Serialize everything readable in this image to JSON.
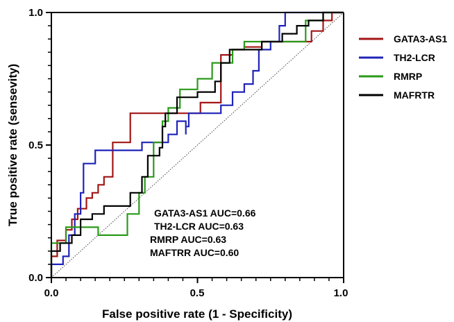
{
  "chart_data": {
    "type": "line",
    "title": "",
    "xlabel": "False positive rate (1 - Specificity)",
    "ylabel": "True positive rate (sensevity)",
    "xlim": [
      0,
      1
    ],
    "ylim": [
      0,
      1
    ],
    "x_ticks": [
      "0.0",
      "0.5",
      "1.0"
    ],
    "y_ticks": [
      "0.0",
      "0.5",
      "1.0"
    ],
    "grid": false,
    "legend_position": "right",
    "reference_line": {
      "style": "dotted",
      "from": [
        0,
        0
      ],
      "to": [
        1,
        1
      ],
      "color": "#444444"
    },
    "series": [
      {
        "name": "GATA3-AS1",
        "color": "#a31515",
        "points": [
          [
            0,
            0
          ],
          [
            0,
            0.08
          ],
          [
            0.02,
            0.08
          ],
          [
            0.02,
            0.14
          ],
          [
            0.05,
            0.14
          ],
          [
            0.05,
            0.18
          ],
          [
            0.07,
            0.18
          ],
          [
            0.07,
            0.22
          ],
          [
            0.09,
            0.22
          ],
          [
            0.09,
            0.26
          ],
          [
            0.12,
            0.26
          ],
          [
            0.12,
            0.3
          ],
          [
            0.14,
            0.3
          ],
          [
            0.14,
            0.32
          ],
          [
            0.16,
            0.32
          ],
          [
            0.16,
            0.35
          ],
          [
            0.18,
            0.35
          ],
          [
            0.18,
            0.38
          ],
          [
            0.21,
            0.38
          ],
          [
            0.21,
            0.51
          ],
          [
            0.27,
            0.51
          ],
          [
            0.27,
            0.62
          ],
          [
            0.51,
            0.62
          ],
          [
            0.51,
            0.66
          ],
          [
            0.58,
            0.66
          ],
          [
            0.58,
            0.84
          ],
          [
            0.62,
            0.84
          ],
          [
            0.62,
            0.86
          ],
          [
            0.66,
            0.86
          ],
          [
            0.66,
            0.87
          ],
          [
            0.72,
            0.87
          ],
          [
            0.72,
            0.89
          ],
          [
            0.89,
            0.89
          ],
          [
            0.89,
            0.93
          ],
          [
            0.93,
            0.93
          ],
          [
            0.93,
            0.97
          ],
          [
            0.96,
            0.97
          ],
          [
            0.96,
            1.0
          ],
          [
            1.0,
            1.0
          ]
        ]
      },
      {
        "name": "TH2-LCR",
        "color": "#1f23b8",
        "points": [
          [
            0,
            0
          ],
          [
            0,
            0.05
          ],
          [
            0.04,
            0.05
          ],
          [
            0.04,
            0.08
          ],
          [
            0.06,
            0.08
          ],
          [
            0.06,
            0.16
          ],
          [
            0.08,
            0.16
          ],
          [
            0.08,
            0.24
          ],
          [
            0.1,
            0.24
          ],
          [
            0.1,
            0.32
          ],
          [
            0.11,
            0.32
          ],
          [
            0.11,
            0.43
          ],
          [
            0.15,
            0.43
          ],
          [
            0.15,
            0.48
          ],
          [
            0.31,
            0.48
          ],
          [
            0.31,
            0.51
          ],
          [
            0.4,
            0.51
          ],
          [
            0.4,
            0.54
          ],
          [
            0.43,
            0.54
          ],
          [
            0.43,
            0.59
          ],
          [
            0.46,
            0.59
          ],
          [
            0.46,
            0.54
          ],
          [
            0.46,
            0.54
          ],
          [
            0.46,
            0.57
          ],
          [
            0.47,
            0.57
          ],
          [
            0.47,
            0.62
          ],
          [
            0.58,
            0.62
          ],
          [
            0.58,
            0.65
          ],
          [
            0.62,
            0.65
          ],
          [
            0.62,
            0.7
          ],
          [
            0.66,
            0.7
          ],
          [
            0.66,
            0.73
          ],
          [
            0.69,
            0.73
          ],
          [
            0.69,
            0.78
          ],
          [
            0.71,
            0.78
          ],
          [
            0.71,
            0.86
          ],
          [
            0.75,
            0.86
          ],
          [
            0.75,
            0.89
          ],
          [
            0.78,
            0.89
          ],
          [
            0.78,
            0.95
          ],
          [
            0.8,
            0.95
          ],
          [
            0.8,
            1.0
          ],
          [
            1.0,
            1.0
          ]
        ]
      },
      {
        "name": "RMRP",
        "color": "#2a9a1a",
        "points": [
          [
            0,
            0
          ],
          [
            0,
            0.13
          ],
          [
            0.05,
            0.13
          ],
          [
            0.05,
            0.19
          ],
          [
            0.16,
            0.19
          ],
          [
            0.16,
            0.16
          ],
          [
            0.26,
            0.16
          ],
          [
            0.26,
            0.24
          ],
          [
            0.3,
            0.24
          ],
          [
            0.3,
            0.32
          ],
          [
            0.32,
            0.32
          ],
          [
            0.32,
            0.38
          ],
          [
            0.35,
            0.38
          ],
          [
            0.35,
            0.51
          ],
          [
            0.38,
            0.51
          ],
          [
            0.38,
            0.59
          ],
          [
            0.4,
            0.59
          ],
          [
            0.4,
            0.64
          ],
          [
            0.44,
            0.64
          ],
          [
            0.44,
            0.71
          ],
          [
            0.5,
            0.71
          ],
          [
            0.5,
            0.75
          ],
          [
            0.55,
            0.75
          ],
          [
            0.55,
            0.81
          ],
          [
            0.62,
            0.81
          ],
          [
            0.62,
            0.86
          ],
          [
            0.66,
            0.86
          ],
          [
            0.66,
            0.89
          ],
          [
            0.87,
            0.89
          ],
          [
            0.87,
            0.97
          ],
          [
            0.93,
            0.97
          ],
          [
            0.93,
            1.0
          ],
          [
            1.0,
            1.0
          ]
        ]
      },
      {
        "name": "MAFRTR",
        "color": "#000000",
        "points": [
          [
            0,
            0
          ],
          [
            0,
            0.1
          ],
          [
            0.03,
            0.1
          ],
          [
            0.03,
            0.13
          ],
          [
            0.07,
            0.13
          ],
          [
            0.07,
            0.16
          ],
          [
            0.1,
            0.16
          ],
          [
            0.1,
            0.22
          ],
          [
            0.14,
            0.22
          ],
          [
            0.14,
            0.24
          ],
          [
            0.18,
            0.24
          ],
          [
            0.18,
            0.27
          ],
          [
            0.27,
            0.27
          ],
          [
            0.27,
            0.32
          ],
          [
            0.31,
            0.32
          ],
          [
            0.31,
            0.38
          ],
          [
            0.33,
            0.38
          ],
          [
            0.33,
            0.46
          ],
          [
            0.37,
            0.46
          ],
          [
            0.37,
            0.49
          ],
          [
            0.38,
            0.49
          ],
          [
            0.38,
            0.57
          ],
          [
            0.39,
            0.57
          ],
          [
            0.39,
            0.62
          ],
          [
            0.43,
            0.62
          ],
          [
            0.43,
            0.68
          ],
          [
            0.5,
            0.68
          ],
          [
            0.5,
            0.7
          ],
          [
            0.56,
            0.7
          ],
          [
            0.56,
            0.74
          ],
          [
            0.58,
            0.74
          ],
          [
            0.58,
            0.81
          ],
          [
            0.61,
            0.81
          ],
          [
            0.61,
            0.86
          ],
          [
            0.72,
            0.86
          ],
          [
            0.72,
            0.89
          ],
          [
            0.79,
            0.89
          ],
          [
            0.79,
            0.92
          ],
          [
            0.84,
            0.92
          ],
          [
            0.84,
            0.95
          ],
          [
            0.88,
            0.95
          ],
          [
            0.88,
            0.97
          ],
          [
            0.93,
            0.97
          ],
          [
            0.93,
            1.0
          ],
          [
            1.0,
            1.0
          ]
        ]
      }
    ],
    "annotations": [
      "GATA3-AS1 AUC=0.66",
      "TH2-LCR AUC=0.63",
      "RMRP AUC=0.63",
      "MAFTRR AUC=0.60"
    ]
  }
}
